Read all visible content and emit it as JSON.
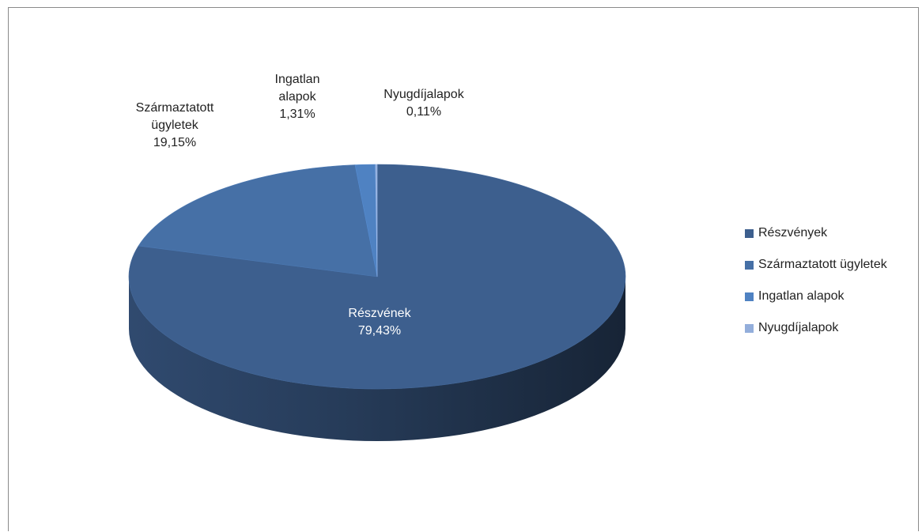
{
  "chart_data": {
    "type": "pie",
    "style": "3d",
    "series": [
      {
        "name": "Részvények",
        "value": 79.43,
        "color": "#3d5f8e"
      },
      {
        "name": "Származtatott ügyletek",
        "value": 19.15,
        "color": "#4670a6"
      },
      {
        "name": "Ingatlan alapok",
        "value": 1.31,
        "color": "#4f82c2"
      },
      {
        "name": "Nyugdíjalapok",
        "value": 0.11,
        "color": "#93aedb"
      }
    ],
    "data_labels": [
      {
        "lines": [
          "Részvének",
          "79,43%"
        ]
      },
      {
        "lines": [
          "Származtatott",
          "ügyletek",
          "19,15%"
        ]
      },
      {
        "lines": [
          "Ingatlan",
          "alapok",
          "1,31%"
        ]
      },
      {
        "lines": [
          "Nyugdíjalapok",
          "0,11%"
        ]
      }
    ],
    "legend": {
      "position": "right",
      "items": [
        "Részvények",
        "Származtatott ügyletek",
        "Ingatlan alapok",
        "Nyugdíjalapok"
      ]
    }
  }
}
